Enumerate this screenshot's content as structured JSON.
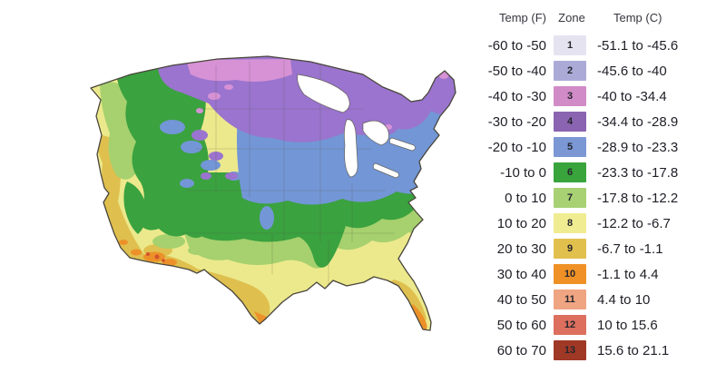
{
  "title": "US plant hardiness zones map with temperature legend",
  "legend": {
    "headers": {
      "temp_f": "Temp (F)",
      "zone": "Zone",
      "temp_c": "Temp (C)"
    },
    "rows": [
      {
        "zone": "1",
        "temp_f": "-60 to -50",
        "temp_c": "-51.1 to -45.6",
        "color": "#e6e3f1"
      },
      {
        "zone": "2",
        "temp_f": "-50 to -40",
        "temp_c": "-45.6 to -40",
        "color": "#abaad7"
      },
      {
        "zone": "3",
        "temp_f": "-40 to -30",
        "temp_c": "-40 to -34.4",
        "color": "#d18bc6"
      },
      {
        "zone": "4",
        "temp_f": "-30 to -20",
        "temp_c": "-34.4 to -28.9",
        "color": "#8a64b1"
      },
      {
        "zone": "5",
        "temp_f": "-20 to -10",
        "temp_c": "-28.9 to -23.3",
        "color": "#7b97d4"
      },
      {
        "zone": "6",
        "temp_f": "-10 to 0",
        "temp_c": "-23.3 to -17.8",
        "color": "#39a33c"
      },
      {
        "zone": "7",
        "temp_f": "0 to 10",
        "temp_c": "-17.8 to -12.2",
        "color": "#a7d173"
      },
      {
        "zone": "8",
        "temp_f": "10 to 20",
        "temp_c": "-12.2 to -6.7",
        "color": "#f0ec91"
      },
      {
        "zone": "9",
        "temp_f": "20 to 30",
        "temp_c": "-6.7 to -1.1",
        "color": "#e2c04e"
      },
      {
        "zone": "10",
        "temp_f": "30 to 40",
        "temp_c": "-1.1 to 4.4",
        "color": "#ef9126"
      },
      {
        "zone": "11",
        "temp_f": "40 to 50",
        "temp_c": "4.4 to 10",
        "color": "#efa482"
      },
      {
        "zone": "12",
        "temp_f": "50 to 60",
        "temp_c": "10 to 15.6",
        "color": "#dd6f5e"
      },
      {
        "zone": "13",
        "temp_f": "60 to 70",
        "temp_c": "15.6 to 21.1",
        "color": "#a03826"
      }
    ]
  },
  "map": {
    "region": "Contiguous United States",
    "zone_fills": {
      "pink": "#d792d6",
      "purple": "#9a74ce",
      "blue": "#7396d6",
      "green": "#3aa23f",
      "light_green": "#a6d16e",
      "pale_yellow": "#ece98c",
      "gold": "#dfc04f",
      "orange": "#ec9129",
      "red_accent": "#d2512e"
    },
    "border_color": "#49453b",
    "lake_color": "#ffffff"
  }
}
